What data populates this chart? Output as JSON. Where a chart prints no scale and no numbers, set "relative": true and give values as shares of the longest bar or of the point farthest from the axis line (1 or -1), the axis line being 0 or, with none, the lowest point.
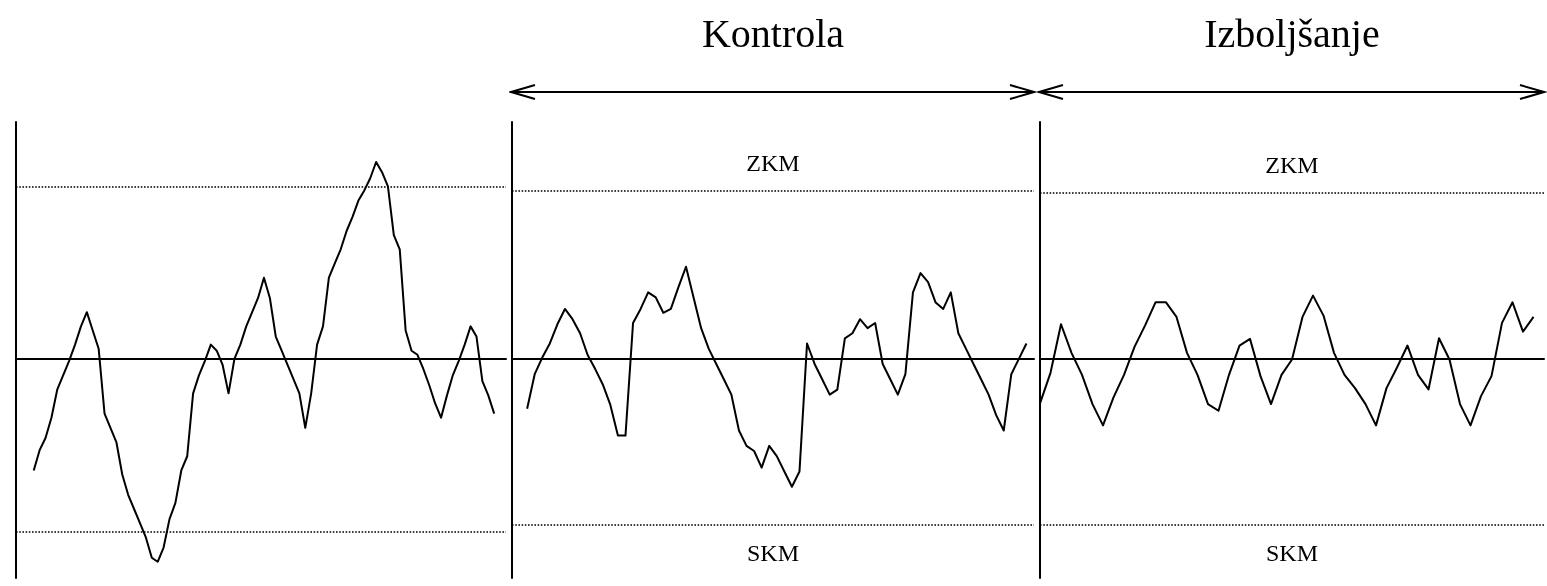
{
  "chart_data": [
    {
      "type": "line",
      "relative": true,
      "categories": [
        null,
        null,
        null,
        null,
        null,
        null,
        null,
        null,
        null,
        null,
        null,
        null,
        null,
        null,
        null,
        null,
        null,
        null,
        null,
        null,
        null,
        null,
        null,
        null,
        null,
        null,
        null,
        null,
        null,
        null,
        null,
        null,
        null,
        null,
        null,
        null,
        null,
        null,
        null,
        null,
        null,
        null,
        null,
        null,
        null,
        null,
        null,
        null,
        null,
        null,
        null,
        null,
        null,
        null,
        null,
        null,
        null,
        null,
        null,
        null,
        null,
        null,
        null,
        null,
        null,
        null,
        null,
        null,
        null,
        null,
        null,
        null,
        null,
        null,
        null,
        null,
        null,
        null,
        null,
        null,
        null,
        null,
        null,
        null
      ],
      "series": [
        {
          "color": "#000000",
          "values": [
            null,
            null,
            null,
            -0.55,
            -0.45,
            -0.39,
            -0.29,
            -0.15,
            -0.08,
            -0.01,
            0.07,
            0.16,
            0.23,
            0.14,
            0.05,
            -0.27,
            -0.34,
            -0.41,
            -0.57,
            -0.67,
            -0.74,
            -0.81,
            -0.88,
            -0.98,
            -1,
            -0.93,
            -0.79,
            -0.71,
            -0.55,
            -0.48,
            -0.17,
            -0.08,
            -0.01,
            0.07,
            0.04,
            -0.03,
            -0.17,
            0,
            0.07,
            0.16,
            0.23,
            0.3,
            0.4,
            0.3,
            0.11,
            0.04,
            -0.03,
            -0.1,
            -0.17,
            -0.34,
            -0.17,
            0.07,
            0.16,
            0.4,
            0.47,
            0.54,
            0.63,
            0.7,
            0.78,
            0.83,
            0.89,
            0.97,
            0.92,
            0.85,
            0.61,
            0.54,
            0.14,
            0.04,
            0.02,
            -0.05,
            -0.13,
            -0.22,
            -0.29,
            -0.18,
            -0.08,
            -0.01,
            0.07,
            0.16,
            0.11,
            -0.11,
            -0.18,
            -0.27,
            null,
            null
          ]
        }
      ],
      "ref_lines": [
        {
          "axis": "y",
          "value": 0.85,
          "line_style": "dotted"
        },
        {
          "axis": "y",
          "value": -0.85,
          "line_style": "dotted"
        }
      ]
    },
    {
      "type": "line",
      "relative": true,
      "title": "Kontrola",
      "categories": [
        null,
        null,
        null,
        null,
        null,
        null,
        null,
        null,
        null,
        null,
        null,
        null,
        null,
        null,
        null,
        null,
        null,
        null,
        null,
        null,
        null,
        null,
        null,
        null,
        null,
        null,
        null,
        null,
        null,
        null,
        null,
        null,
        null,
        null,
        null,
        null,
        null,
        null,
        null,
        null,
        null,
        null,
        null,
        null,
        null,
        null,
        null,
        null,
        null,
        null,
        null,
        null,
        null,
        null,
        null,
        null,
        null,
        null,
        null,
        null,
        null,
        null,
        null,
        null,
        null,
        null,
        null,
        null,
        null,
        null
      ],
      "series": [
        {
          "color": "#000000",
          "values": [
            null,
            null,
            -0.39,
            -0.12,
            0.01,
            0.12,
            0.27,
            0.39,
            0.31,
            0.2,
            0.03,
            -0.08,
            -0.2,
            -0.36,
            -0.6,
            -0.6,
            0.28,
            0.39,
            0.52,
            0.48,
            0.36,
            0.39,
            0.56,
            0.72,
            0.48,
            0.24,
            0.08,
            -0.04,
            -0.16,
            -0.28,
            -0.56,
            -0.68,
            -0.72,
            -0.85,
            -0.68,
            -0.76,
            -0.88,
            -1,
            -0.88,
            0.12,
            -0.04,
            -0.16,
            -0.28,
            -0.24,
            0.16,
            0.2,
            0.31,
            0.24,
            0.28,
            -0.04,
            -0.16,
            -0.28,
            -0.12,
            0.52,
            0.67,
            0.6,
            0.44,
            0.39,
            0.52,
            0.2,
            0.08,
            -0.04,
            -0.16,
            -0.28,
            -0.44,
            -0.56,
            -0.12,
            0,
            0.12,
            null
          ]
        }
      ],
      "ref_lines": [
        {
          "axis": "y",
          "value": 1.31,
          "line_style": "dotted",
          "label": "ZKM"
        },
        {
          "axis": "y",
          "value": -1.3,
          "line_style": "dotted",
          "label": "SKM"
        }
      ]
    },
    {
      "type": "line",
      "relative": true,
      "title": "Izboljšanje",
      "categories": [
        null,
        null,
        null,
        null,
        null,
        null,
        null,
        null,
        null,
        null,
        null,
        null,
        null,
        null,
        null,
        null,
        null,
        null,
        null,
        null,
        null,
        null,
        null,
        null,
        null,
        null,
        null,
        null,
        null,
        null,
        null,
        null,
        null,
        null,
        null,
        null,
        null,
        null,
        null,
        null,
        null,
        null,
        null,
        null,
        null,
        null,
        null,
        null,
        null
      ],
      "series": [
        {
          "color": "#000000",
          "values": [
            -0.67,
            -0.21,
            0.52,
            0.09,
            -0.24,
            -0.68,
            -1,
            -0.58,
            -0.24,
            0.18,
            0.5,
            0.85,
            0.85,
            0.63,
            0.09,
            -0.24,
            -0.68,
            -0.78,
            -0.24,
            0.2,
            0.3,
            -0.26,
            -0.68,
            -0.24,
            -0.01,
            0.63,
            0.95,
            0.65,
            0.09,
            -0.24,
            -0.44,
            -0.68,
            -1,
            -0.44,
            -0.13,
            0.2,
            -0.24,
            -0.46,
            0.31,
            -0.01,
            -0.68,
            -1,
            -0.56,
            -0.26,
            0.54,
            0.85,
            0.41,
            0.63,
            null
          ]
        }
      ],
      "ref_lines": [
        {
          "axis": "y",
          "value": 2.49,
          "line_style": "dotted",
          "label": "ZKM"
        },
        {
          "axis": "y",
          "value": -2.5,
          "line_style": "dotted",
          "label": "SKM"
        }
      ]
    }
  ]
}
